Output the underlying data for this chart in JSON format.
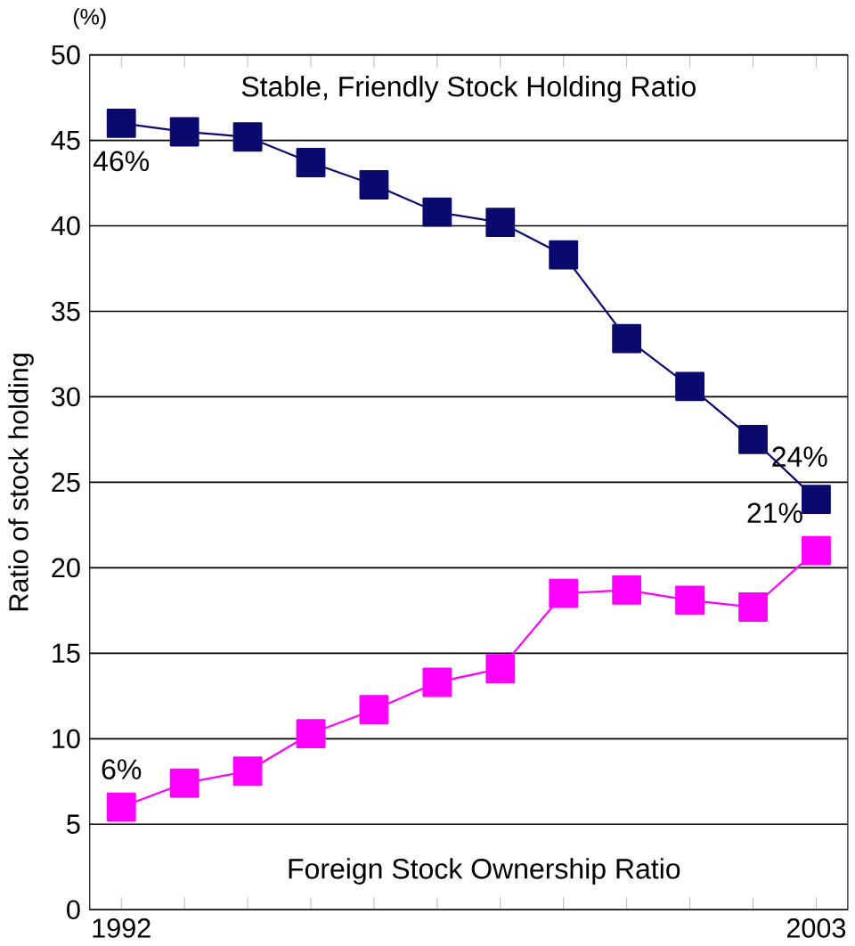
{
  "chart_data": {
    "type": "line",
    "ylabel": "Ratio of stock holding",
    "x": [
      1992,
      1993,
      1994,
      1995,
      1996,
      1997,
      1998,
      1999,
      2000,
      2001,
      2002,
      2003
    ],
    "series": [
      {
        "name": "Stable, Friendly Stock Holding Ratio",
        "color": "#0a0a6e",
        "values": [
          46,
          45.5,
          45.2,
          43.7,
          42.4,
          40.8,
          40.2,
          38.3,
          33.4,
          30.6,
          27.5,
          24
        ],
        "value_labels": [
          "46%",
          null,
          null,
          null,
          null,
          null,
          null,
          null,
          null,
          null,
          null,
          "24%"
        ]
      },
      {
        "name": "Foreign Stock Ownership Ratio",
        "color": "#ff00ff",
        "values": [
          6,
          7.4,
          8.1,
          10.3,
          11.7,
          13.3,
          14.1,
          18.5,
          18.7,
          18.1,
          17.7,
          21
        ],
        "value_labels": [
          "6%",
          null,
          null,
          null,
          null,
          null,
          null,
          null,
          null,
          null,
          null,
          "21%"
        ]
      }
    ],
    "xlim": [
      1991.5,
      2003.5
    ],
    "ylim": [
      0,
      50
    ],
    "xticks": [
      {
        "value": 1992,
        "label": "1992"
      },
      {
        "value": 1993,
        "label": null
      },
      {
        "value": 1994,
        "label": null
      },
      {
        "value": 1995,
        "label": null
      },
      {
        "value": 1996,
        "label": null
      },
      {
        "value": 1997,
        "label": null
      },
      {
        "value": 1998,
        "label": null
      },
      {
        "value": 1999,
        "label": null
      },
      {
        "value": 2000,
        "label": null
      },
      {
        "value": 2001,
        "label": null
      },
      {
        "value": 2002,
        "label": null
      },
      {
        "value": 2003,
        "label": "2003"
      }
    ],
    "yticks": [
      0,
      5,
      10,
      15,
      20,
      25,
      30,
      35,
      40,
      45,
      50
    ],
    "grid": "y",
    "legend": false,
    "marker": "square",
    "line_style": "solid",
    "annotations": [
      "(%)"
    ]
  }
}
